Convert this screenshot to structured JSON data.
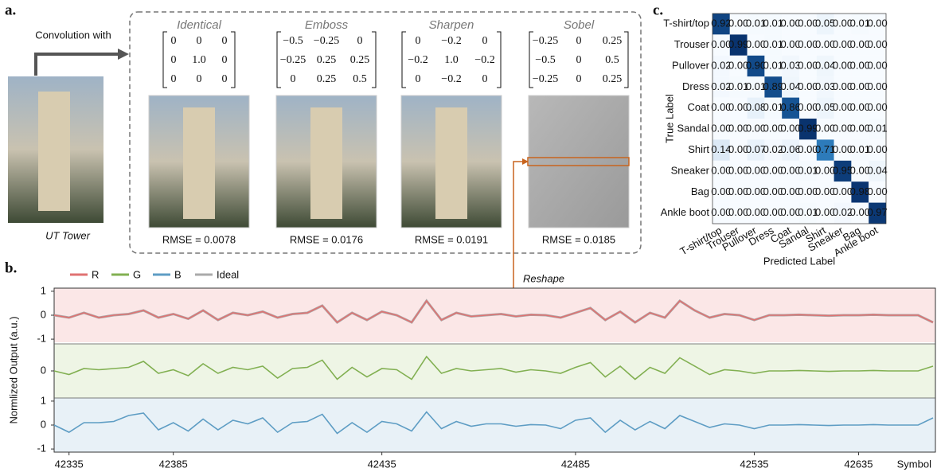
{
  "panel_a": {
    "label": "a.",
    "input_label": "Convolution with",
    "image_caption": "UT Tower",
    "reshape_label": "Reshape",
    "kernels": [
      {
        "name": "Identical",
        "matrix": [
          [
            "0",
            "0",
            "0"
          ],
          [
            "0",
            "1.0",
            "0"
          ],
          [
            "0",
            "0",
            "0"
          ]
        ],
        "rmse": "RMSE = 0.0078"
      },
      {
        "name": "Emboss",
        "matrix": [
          [
            "−0.5",
            "−0.25",
            "0"
          ],
          [
            "−0.25",
            "0.25",
            "0.25"
          ],
          [
            "0",
            "0.25",
            "0.5"
          ]
        ],
        "rmse": "RMSE = 0.0176"
      },
      {
        "name": "Sharpen",
        "matrix": [
          [
            "0",
            "−0.2",
            "0"
          ],
          [
            "−0.2",
            "1.0",
            "−0.2"
          ],
          [
            "0",
            "−0.2",
            "0"
          ]
        ],
        "rmse": "RMSE = 0.0191"
      },
      {
        "name": "Sobel",
        "matrix": [
          [
            "−0.25",
            "0",
            "0.25"
          ],
          [
            "−0.5",
            "0",
            "0.5"
          ],
          [
            "−0.25",
            "0",
            "0.25"
          ]
        ],
        "rmse": "RMSE = 0.0185"
      }
    ]
  },
  "chart_data": [
    {
      "type": "line",
      "label": "b.",
      "ylabel": "Normlized Output (a.u.)",
      "xlabel": "Symbol",
      "ylim": [
        -1.13,
        1.13
      ],
      "categories": [
        null,
        "42335",
        null,
        null,
        null,
        null,
        null,
        null,
        "42385",
        null,
        null,
        null,
        null,
        null,
        null,
        null,
        null,
        null,
        null,
        null,
        null,
        null,
        "42435",
        null,
        null,
        null,
        null,
        null,
        null,
        null,
        null,
        null,
        null,
        null,
        null,
        "42485",
        null,
        null,
        null,
        null,
        null,
        null,
        null,
        null,
        null,
        null,
        null,
        "42535",
        null,
        null,
        null,
        null,
        null,
        null,
        "42635",
        null,
        null,
        null,
        null,
        null
      ],
      "series": [
        {
          "name": "R",
          "color": "#e07272",
          "background": "#fbe7e7",
          "yticks": [
            -1,
            0,
            1
          ],
          "values": [
            0,
            -0.1,
            0.1,
            -0.1,
            0,
            0.05,
            0.2,
            -0.1,
            0.05,
            -0.15,
            0.2,
            -0.2,
            0.1,
            0,
            0.15,
            -0.1,
            0.05,
            0.1,
            0.4,
            -0.3,
            0.1,
            -0.2,
            0.15,
            0,
            -0.3,
            0.6,
            -0.2,
            0.1,
            -0.05,
            0,
            0.05,
            -0.05,
            0.02,
            0,
            -0.1,
            0.1,
            0.3,
            -0.2,
            0.15,
            -0.3,
            0.1,
            -0.1,
            0.6,
            0.2,
            -0.1,
            0.05,
            0,
            -0.2,
            0,
            0,
            0.02,
            0,
            -0.02,
            0,
            0,
            0.02,
            0,
            0,
            0,
            -0.3
          ]
        },
        {
          "name": "G",
          "color": "#82b052",
          "background": "#eef5e5",
          "yticks": [
            0
          ],
          "values": [
            0,
            -0.15,
            0.1,
            0.05,
            0.1,
            0.15,
            0.4,
            -0.1,
            0.05,
            -0.2,
            0.3,
            -0.1,
            0.15,
            0.05,
            0.2,
            -0.3,
            0.1,
            0.15,
            0.45,
            -0.35,
            0.15,
            -0.25,
            0.1,
            0.05,
            -0.35,
            0.6,
            -0.1,
            0.1,
            0,
            0.05,
            0.1,
            -0.05,
            0.05,
            0,
            -0.1,
            0.15,
            0.35,
            -0.25,
            0.2,
            -0.35,
            0.15,
            -0.1,
            0.55,
            0.2,
            -0.15,
            0.05,
            0,
            -0.1,
            0,
            0,
            0.02,
            0,
            -0.02,
            0,
            0,
            0.02,
            0,
            0,
            0,
            0.2
          ]
        },
        {
          "name": "B",
          "color": "#5e9dc4",
          "background": "#e8f1f7",
          "yticks": [
            -1,
            0,
            1
          ],
          "values": [
            0,
            -0.3,
            0.1,
            0.1,
            0.15,
            0.4,
            0.5,
            -0.2,
            0.1,
            -0.25,
            0.25,
            -0.2,
            0.2,
            0.05,
            0.3,
            -0.3,
            0.1,
            0.15,
            0.45,
            -0.35,
            0.1,
            -0.3,
            0.15,
            0.05,
            -0.25,
            0.55,
            -0.15,
            0.15,
            -0.05,
            0.05,
            0.05,
            -0.05,
            0.02,
            0,
            -0.15,
            0.2,
            0.3,
            -0.3,
            0.2,
            -0.2,
            0.15,
            -0.15,
            0.4,
            0.15,
            -0.1,
            0.05,
            0,
            -0.15,
            0,
            0,
            0.02,
            0,
            -0.02,
            0,
            0,
            0.02,
            0,
            0,
            0,
            0.3
          ]
        },
        {
          "name": "Ideal",
          "color": "#aaaaaa",
          "values": [
            0,
            -0.1,
            0.1,
            -0.1,
            0,
            0.05,
            0.2,
            -0.1,
            0.05,
            -0.15,
            0.2,
            -0.2,
            0.1,
            0,
            0.15,
            -0.1,
            0.05,
            0.1,
            0.4,
            -0.3,
            0.1,
            -0.2,
            0.15,
            0,
            -0.3,
            0.6,
            -0.2,
            0.1,
            -0.05,
            0,
            0.05,
            -0.05,
            0.02,
            0,
            -0.1,
            0.1,
            0.3,
            -0.2,
            0.15,
            -0.3,
            0.1,
            -0.1,
            0.6,
            0.2,
            -0.1,
            0.05,
            0,
            -0.2,
            0,
            0,
            0.02,
            0,
            -0.02,
            0,
            0,
            0.02,
            0,
            0,
            0,
            -0.3
          ]
        }
      ]
    },
    {
      "type": "heatmap",
      "label": "c.",
      "xlabel": "Predicted Label",
      "ylabel": "True Label",
      "colorscale": [
        "#f7fbff",
        "#c6dbef",
        "#6baed6",
        "#2171b5",
        "#08306b"
      ],
      "x_categories": [
        "T-shirt/top",
        "Trouser",
        "Pullover",
        "Dress",
        "Coat",
        "Sandal",
        "Shirt",
        "Sneaker",
        "Bag",
        "Ankle boot"
      ],
      "y_categories": [
        "T-shirt/top",
        "Trouser",
        "Pullover",
        "Dress",
        "Coat",
        "Sandal",
        "Shirt",
        "Sneaker",
        "Bag",
        "Ankle boot"
      ],
      "values": [
        [
          0.92,
          0,
          0.01,
          0.01,
          0,
          0,
          0.05,
          0,
          0.01,
          0
        ],
        [
          0,
          0.99,
          0,
          0.01,
          0,
          0,
          0,
          0,
          0,
          0
        ],
        [
          0.02,
          0,
          0.9,
          0.01,
          0.03,
          0,
          0.04,
          0,
          0,
          0
        ],
        [
          0.02,
          0.01,
          0.01,
          0.89,
          0.04,
          0,
          0.03,
          0,
          0,
          0
        ],
        [
          0,
          0,
          0.08,
          0.01,
          0.86,
          0,
          0.05,
          0,
          0,
          0
        ],
        [
          0,
          0,
          0,
          0,
          0,
          0.99,
          0,
          0,
          0,
          0.01
        ],
        [
          0.14,
          0,
          0.07,
          0.02,
          0.06,
          0,
          0.71,
          0,
          0.01,
          0
        ],
        [
          0,
          0,
          0,
          0,
          0,
          0.01,
          0,
          0.95,
          0,
          0.04
        ],
        [
          0,
          0,
          0,
          0,
          0,
          0,
          0,
          0,
          0.98,
          0
        ],
        [
          0,
          0,
          0,
          0,
          0,
          0.01,
          0,
          0.02,
          0,
          0.97
        ]
      ],
      "value_labels": [
        [
          "0.92",
          "0.00",
          "0.01",
          "0.01",
          "0.00",
          "0.00",
          "0.05",
          "0.00",
          "0.01",
          "0.00"
        ],
        [
          "0.00",
          "0.99",
          "0.00",
          "0.01",
          "0.00",
          "0.00",
          "0.00",
          "0.00",
          "0.00",
          "0.00"
        ],
        [
          "0.02",
          "0.00",
          "0.90",
          "0.01",
          "0.03",
          "0.00",
          "0.04",
          "0.00",
          "0.00",
          "0.00"
        ],
        [
          "0.02",
          "0.01",
          "0.01",
          "0.89",
          "0.04",
          "0.00",
          "0.03",
          "0.00",
          "0.00",
          "0.00"
        ],
        [
          "0.00",
          "0.00",
          "0.08",
          "0.01",
          "0.86",
          "0.00",
          "0.05",
          "0.00",
          "0.00",
          "0.00"
        ],
        [
          "0.00",
          "0.00",
          "0.00",
          "0.00",
          "0.00",
          "0.99",
          "0.00",
          "0.00",
          "0.00",
          "0.01"
        ],
        [
          "0.14",
          "0.00",
          "0.07",
          "0.02",
          "0.06",
          "0.00",
          "0.71",
          "0.00",
          "0.01",
          "0.00"
        ],
        [
          "0.00",
          "0.00",
          "0.00",
          "0.00",
          "0.00",
          "0.01",
          "0.00",
          "0.95",
          "0.00",
          "0.04"
        ],
        [
          "0.00",
          "0.00",
          "0.00",
          "0.00",
          "0.00",
          "0.00",
          "0.00",
          "0.00",
          "0.98",
          "0.00"
        ],
        [
          "0.00",
          "0.00",
          "0.00",
          "0.00",
          "0.00",
          "0.01",
          "0.00",
          "0.02",
          "0.00",
          "0.97"
        ]
      ]
    }
  ]
}
